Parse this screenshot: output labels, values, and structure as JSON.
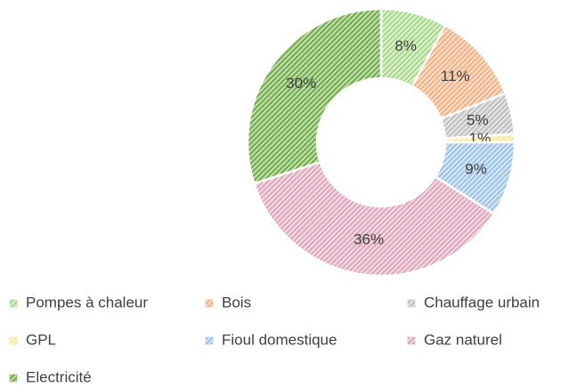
{
  "chart_data": {
    "type": "donut",
    "categories": [
      "Pompes à chaleur",
      "Bois",
      "Chauffage urbain",
      "GPL",
      "Fioul domestique",
      "Gaz naturel",
      "Electricité"
    ],
    "values": [
      8,
      11,
      5,
      1,
      9,
      36,
      30
    ],
    "value_labels": [
      "8%",
      "11%",
      "5%",
      "1%",
      "9%",
      "36%",
      "30%"
    ],
    "colors": [
      "#a9d98a",
      "#f4b183",
      "#bfbfbf",
      "#ffe699",
      "#9dc3e6",
      "#dea7bb",
      "#70ad47"
    ],
    "legend": "bottom"
  }
}
